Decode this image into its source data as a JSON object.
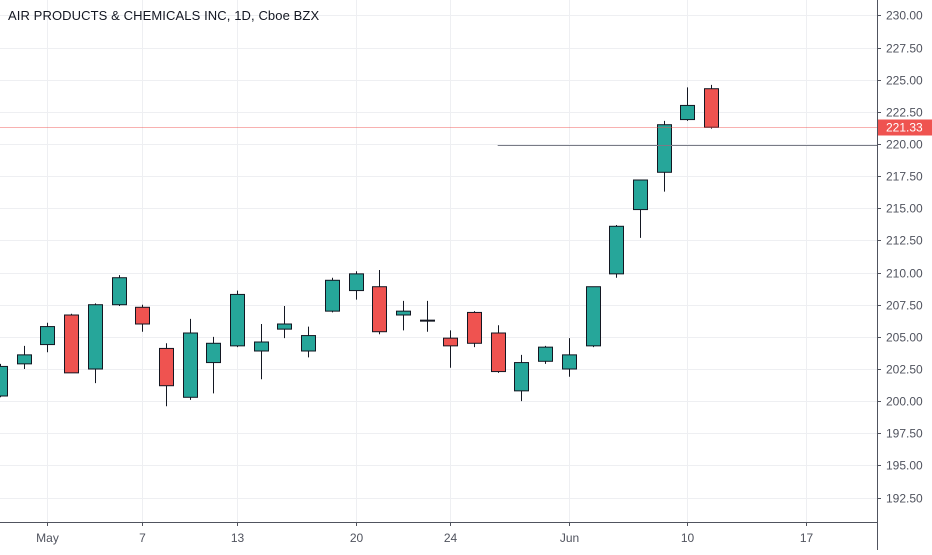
{
  "chart_data": {
    "type": "candlestick",
    "title": "AIR PRODUCTS & CHEMICALS INC, 1D, Cboe BZX",
    "y_ticks": [
      "192.50",
      "195.00",
      "197.50",
      "200.00",
      "202.50",
      "205.00",
      "207.50",
      "210.00",
      "212.50",
      "215.00",
      "217.50",
      "220.00",
      "222.50",
      "225.00",
      "227.50",
      "230.00"
    ],
    "ylim": [
      190.6,
      231.2
    ],
    "x_ticks": [
      {
        "label": "May",
        "index": 2
      },
      {
        "label": "7",
        "index": 6
      },
      {
        "label": "13",
        "index": 10
      },
      {
        "label": "20",
        "index": 15
      },
      {
        "label": "24",
        "index": 19
      },
      {
        "label": "Jun",
        "index": 24
      },
      {
        "label": "10",
        "index": 29
      },
      {
        "label": "17",
        "index": 34
      }
    ],
    "last_price": {
      "label": "221.33",
      "value": 221.33
    },
    "level_line": 219.95,
    "candles": [
      {
        "i": 0,
        "open": 200.4,
        "high": 202.9,
        "low": 200.3,
        "close": 202.7
      },
      {
        "i": 1,
        "open": 202.9,
        "high": 204.3,
        "low": 202.5,
        "close": 203.6
      },
      {
        "i": 2,
        "open": 204.4,
        "high": 206.1,
        "low": 203.8,
        "close": 205.8
      },
      {
        "i": 3,
        "open": 206.7,
        "high": 206.8,
        "low": 202.2,
        "close": 202.2
      },
      {
        "i": 4,
        "open": 202.5,
        "high": 207.6,
        "low": 201.4,
        "close": 207.5
      },
      {
        "i": 5,
        "open": 207.5,
        "high": 209.8,
        "low": 207.4,
        "close": 209.6
      },
      {
        "i": 6,
        "open": 207.3,
        "high": 207.5,
        "low": 205.4,
        "close": 206.0
      },
      {
        "i": 7,
        "open": 204.1,
        "high": 204.5,
        "low": 199.6,
        "close": 201.2
      },
      {
        "i": 8,
        "open": 200.3,
        "high": 206.4,
        "low": 200.1,
        "close": 205.3
      },
      {
        "i": 9,
        "open": 203.0,
        "high": 205.0,
        "low": 200.6,
        "close": 204.5
      },
      {
        "i": 10,
        "open": 204.3,
        "high": 208.6,
        "low": 204.2,
        "close": 208.3
      },
      {
        "i": 11,
        "open": 203.9,
        "high": 206.0,
        "low": 201.7,
        "close": 204.6
      },
      {
        "i": 12,
        "open": 205.6,
        "high": 207.4,
        "low": 204.9,
        "close": 206.0
      },
      {
        "i": 13,
        "open": 203.9,
        "high": 205.8,
        "low": 203.4,
        "close": 205.1
      },
      {
        "i": 14,
        "open": 207.0,
        "high": 209.6,
        "low": 206.9,
        "close": 209.4
      },
      {
        "i": 15,
        "open": 208.6,
        "high": 210.1,
        "low": 207.9,
        "close": 209.9
      },
      {
        "i": 16,
        "open": 208.9,
        "high": 210.2,
        "low": 205.2,
        "close": 205.4
      },
      {
        "i": 17,
        "open": 206.7,
        "high": 207.8,
        "low": 205.5,
        "close": 207.0
      },
      {
        "i": 18,
        "open": 206.3,
        "high": 207.8,
        "low": 205.4,
        "close": 206.3
      },
      {
        "i": 19,
        "open": 204.9,
        "high": 205.5,
        "low": 202.6,
        "close": 204.3
      },
      {
        "i": 20,
        "open": 206.9,
        "high": 207.0,
        "low": 204.2,
        "close": 204.5
      },
      {
        "i": 21,
        "open": 205.3,
        "high": 205.9,
        "low": 202.2,
        "close": 202.3
      },
      {
        "i": 22,
        "open": 200.8,
        "high": 203.6,
        "low": 200.0,
        "close": 203.0
      },
      {
        "i": 23,
        "open": 203.1,
        "high": 204.3,
        "low": 202.9,
        "close": 204.2
      },
      {
        "i": 24,
        "open": 202.5,
        "high": 204.9,
        "low": 201.9,
        "close": 203.6
      },
      {
        "i": 25,
        "open": 204.3,
        "high": 208.9,
        "low": 204.2,
        "close": 208.9
      },
      {
        "i": 26,
        "open": 209.9,
        "high": 213.7,
        "low": 209.6,
        "close": 213.6
      },
      {
        "i": 27,
        "open": 214.9,
        "high": 217.2,
        "low": 212.7,
        "close": 217.2
      },
      {
        "i": 28,
        "open": 217.8,
        "high": 221.8,
        "low": 216.3,
        "close": 221.5
      },
      {
        "i": 29,
        "open": 221.9,
        "high": 224.4,
        "low": 221.8,
        "close": 223.0
      },
      {
        "i": 30,
        "open": 224.3,
        "high": 224.6,
        "low": 221.2,
        "close": 221.3
      }
    ]
  },
  "colors": {
    "up": "#26a69a",
    "down": "#ef5350",
    "wick": "#131722",
    "grid": "#eeeff2",
    "axis_text": "#50535e",
    "last_price": "#ef5350",
    "level_line": "#787b86"
  }
}
